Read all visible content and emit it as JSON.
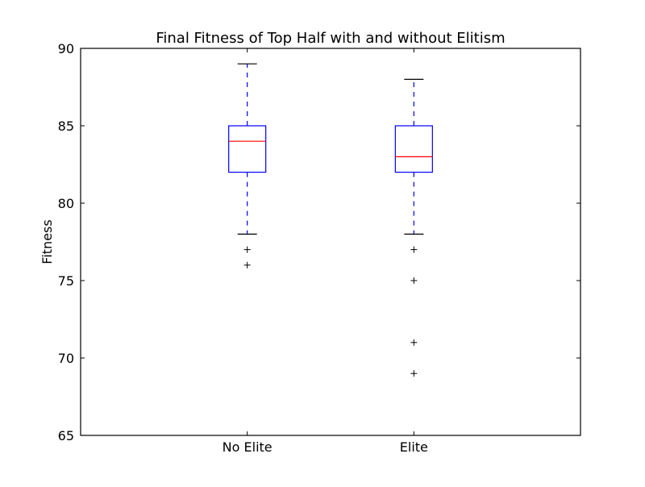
{
  "chart_data": {
    "type": "box",
    "title": "Final Fitness of Top Half with and without Elitism",
    "xlabel": "",
    "ylabel": "Fitness",
    "ylim": [
      65,
      90
    ],
    "yticks": [
      65,
      70,
      75,
      80,
      85,
      90
    ],
    "categories": [
      "No Elite",
      "Elite"
    ],
    "boxes": [
      {
        "name": "No Elite",
        "whisker_low": 78,
        "q1": 82,
        "median": 84,
        "q3": 85,
        "whisker_high": 89,
        "outliers": [
          77,
          76
        ]
      },
      {
        "name": "Elite",
        "whisker_low": 78,
        "q1": 82,
        "median": 83,
        "q3": 85,
        "whisker_high": 88,
        "outliers": [
          77,
          75,
          71,
          69
        ]
      }
    ],
    "colors": {
      "box": "#0000ff",
      "median": "#ff0000",
      "whisker": "#0000ff",
      "cap": "#000000",
      "outlier": "#000000",
      "axes": "#000000"
    },
    "grid": false,
    "legend": "none"
  }
}
